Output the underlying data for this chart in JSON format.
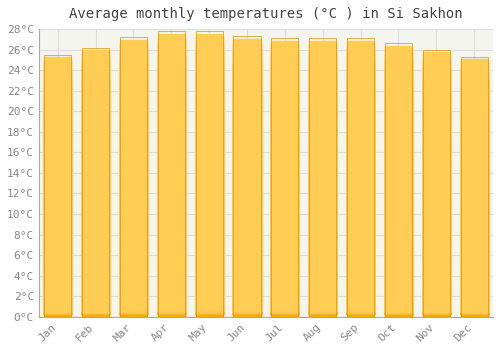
{
  "title": "Average monthly temperatures (°C ) in Si Sakhon",
  "months": [
    "Jan",
    "Feb",
    "Mar",
    "Apr",
    "May",
    "Jun",
    "Jul",
    "Aug",
    "Sep",
    "Oct",
    "Nov",
    "Dec"
  ],
  "temperatures": [
    25.5,
    26.2,
    27.2,
    27.8,
    27.8,
    27.3,
    27.1,
    27.1,
    27.1,
    26.6,
    26.0,
    25.3
  ],
  "bar_color_light": "#FFCC55",
  "bar_color_dark": "#F5A800",
  "bar_edge_color": "#E09000",
  "plot_bg_color": "#F5F5F0",
  "figure_bg_color": "#FFFFFF",
  "grid_color": "#DDDDDD",
  "text_color": "#888888",
  "title_color": "#444444",
  "ylim": [
    0,
    28
  ],
  "ytick_step": 2,
  "title_fontsize": 10,
  "tick_fontsize": 8,
  "font_family": "monospace"
}
